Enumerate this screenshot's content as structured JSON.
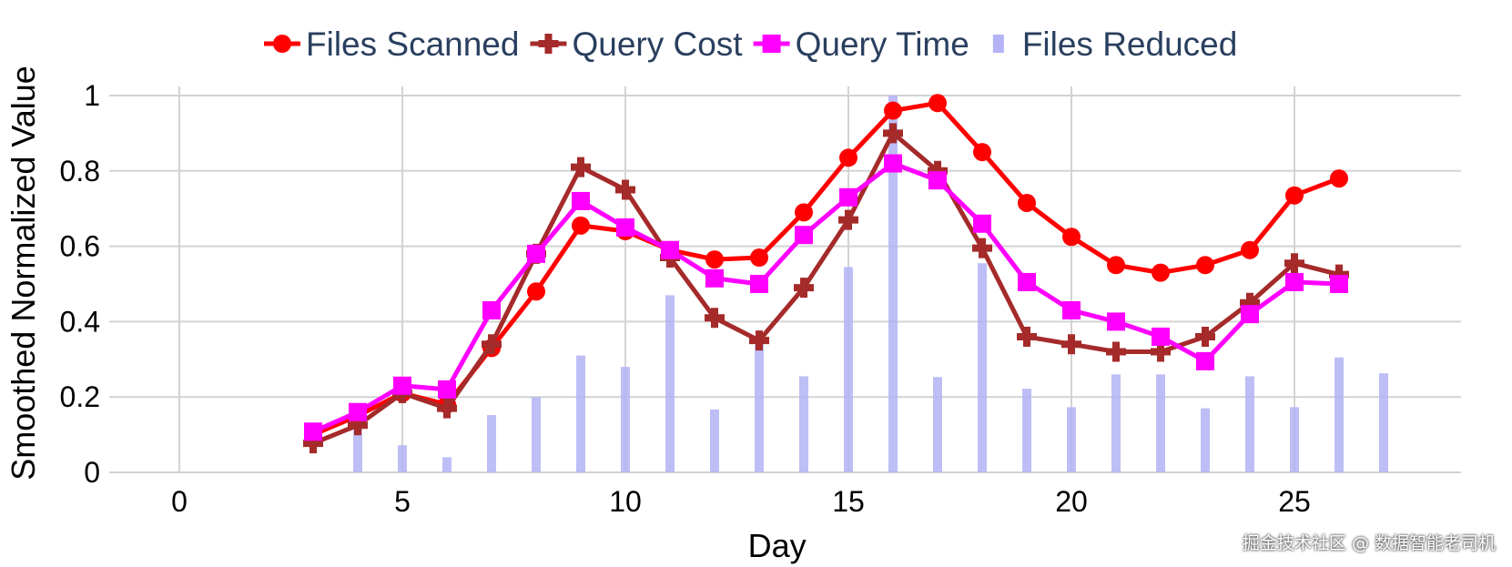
{
  "chart_data": {
    "type": "line",
    "xlabel": "Day",
    "ylabel": "Smoothed Normalized Value",
    "xlim": [
      -2.5,
      29.5
    ],
    "ylim": [
      0,
      1.05
    ],
    "xticks": [
      0,
      5,
      10,
      15,
      20,
      25
    ],
    "yticks": [
      0,
      0.2,
      0.4,
      0.6,
      0.8,
      1
    ],
    "ytick_labels": [
      "0",
      "0.2",
      "0.4",
      "0.6",
      "0.8",
      "1"
    ],
    "grid": true,
    "legend_position": "top",
    "series": [
      {
        "name": "Files Scanned",
        "kind": "line",
        "marker": "circle",
        "color": "#ff0000",
        "x": [
          3,
          4,
          5,
          6,
          7,
          8,
          9,
          10,
          11,
          12,
          13,
          14,
          15,
          16,
          17,
          18,
          19,
          20,
          21,
          22,
          23,
          24,
          25,
          26
        ],
        "values": [
          0.1,
          0.15,
          0.21,
          0.18,
          0.33,
          0.48,
          0.655,
          0.64,
          0.59,
          0.565,
          0.57,
          0.69,
          0.835,
          0.96,
          0.98,
          0.85,
          0.715,
          0.625,
          0.55,
          0.53,
          0.55,
          0.59,
          0.735,
          0.78
        ]
      },
      {
        "name": "Query Cost",
        "kind": "line",
        "marker": "cross",
        "color": "#a52a2a",
        "x": [
          3,
          4,
          5,
          6,
          7,
          8,
          9,
          10,
          11,
          12,
          13,
          14,
          15,
          16,
          17,
          18,
          19,
          20,
          21,
          22,
          23,
          24,
          25,
          26
        ],
        "values": [
          0.077,
          0.125,
          0.21,
          0.17,
          0.34,
          0.58,
          0.81,
          0.75,
          0.57,
          0.41,
          0.35,
          0.49,
          0.67,
          0.9,
          0.8,
          0.595,
          0.36,
          0.34,
          0.32,
          0.32,
          0.36,
          0.45,
          0.555,
          0.525
        ]
      },
      {
        "name": "Query Time",
        "kind": "line",
        "marker": "square",
        "color": "#ff00ff",
        "x": [
          3,
          4,
          5,
          6,
          7,
          8,
          9,
          10,
          11,
          12,
          13,
          14,
          15,
          16,
          17,
          18,
          19,
          20,
          21,
          22,
          23,
          24,
          25,
          26
        ],
        "values": [
          0.108,
          0.16,
          0.23,
          0.22,
          0.43,
          0.58,
          0.72,
          0.65,
          0.59,
          0.515,
          0.5,
          0.63,
          0.73,
          0.82,
          0.775,
          0.66,
          0.505,
          0.43,
          0.4,
          0.36,
          0.295,
          0.42,
          0.505,
          0.5
        ]
      },
      {
        "name": "Files Reduced",
        "kind": "bar",
        "color": "#b3b3f5",
        "x": [
          4,
          5,
          6,
          7,
          8,
          9,
          10,
          11,
          12,
          13,
          14,
          15,
          16,
          17,
          18,
          19,
          20,
          21,
          22,
          23,
          24,
          25,
          26,
          27
        ],
        "values": [
          0.12,
          0.072,
          0.04,
          0.152,
          0.2,
          0.31,
          0.28,
          0.47,
          0.167,
          0.34,
          0.255,
          0.545,
          1.0,
          0.253,
          0.555,
          0.222,
          0.173,
          0.26,
          0.26,
          0.17,
          0.255,
          0.173,
          0.305,
          0.263
        ]
      }
    ]
  },
  "watermark": "掘金技术社区 @ 数据智能老司机"
}
